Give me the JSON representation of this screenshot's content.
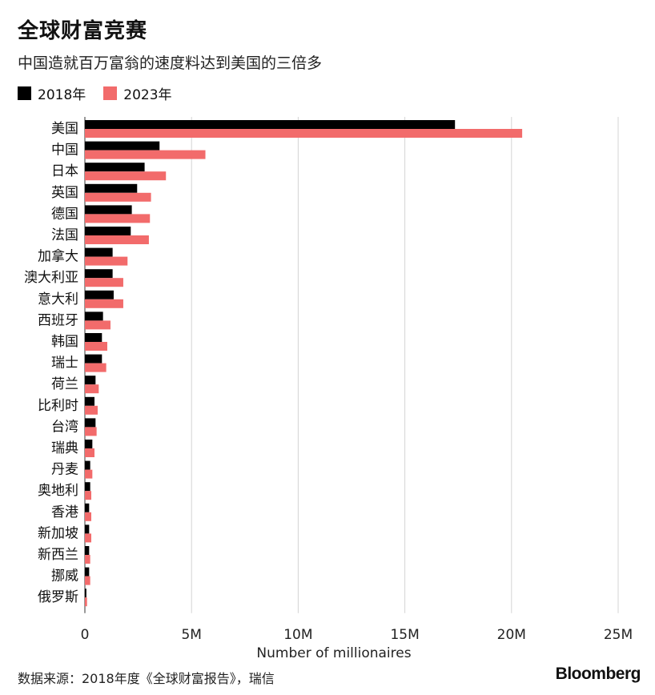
{
  "header": {
    "title": "全球财富竞赛",
    "subtitle": "中国造就百万富翁的速度料达到美国的三倍多"
  },
  "legend": {
    "items": [
      {
        "label": "2018年",
        "color": "#000000"
      },
      {
        "label": "2023年",
        "color": "#f26b6b"
      }
    ]
  },
  "footer": {
    "source": "数据来源：2018年度《全球财富报告》，瑞信",
    "brand": "Bloomberg"
  },
  "chart_data": {
    "type": "bar",
    "orientation": "horizontal",
    "categories": [
      "美国",
      "中国",
      "日本",
      "英国",
      "德国",
      "法国",
      "加拿大",
      "澳大利亚",
      "意大利",
      "西班牙",
      "韩国",
      "瑞士",
      "荷兰",
      "比利时",
      "台湾",
      "瑞典",
      "丹麦",
      "奥地利",
      "香港",
      "新加坡",
      "新西兰",
      "挪威",
      "俄罗斯"
    ],
    "series": [
      {
        "name": "2018年",
        "color": "#000000",
        "values": [
          17.35,
          3.5,
          2.8,
          2.45,
          2.2,
          2.15,
          1.3,
          1.3,
          1.35,
          0.85,
          0.8,
          0.8,
          0.5,
          0.45,
          0.5,
          0.35,
          0.25,
          0.25,
          0.2,
          0.2,
          0.2,
          0.2,
          0.07
        ]
      },
      {
        "name": "2023年",
        "color": "#f26b6b",
        "values": [
          20.5,
          5.65,
          3.8,
          3.1,
          3.05,
          3.0,
          2.0,
          1.8,
          1.8,
          1.2,
          1.05,
          1.0,
          0.65,
          0.6,
          0.55,
          0.45,
          0.35,
          0.3,
          0.3,
          0.3,
          0.25,
          0.25,
          0.1
        ]
      }
    ],
    "unit": "M",
    "xlim": [
      0,
      25
    ],
    "xticks": [
      0,
      5,
      10,
      15,
      20,
      25
    ],
    "xticklabels": [
      "0",
      "5M",
      "10M",
      "15M",
      "20M",
      "25M"
    ],
    "xlabel": "Number of millionaires",
    "ylabel": "",
    "grid": "vertical",
    "legend_position": "top-left"
  }
}
